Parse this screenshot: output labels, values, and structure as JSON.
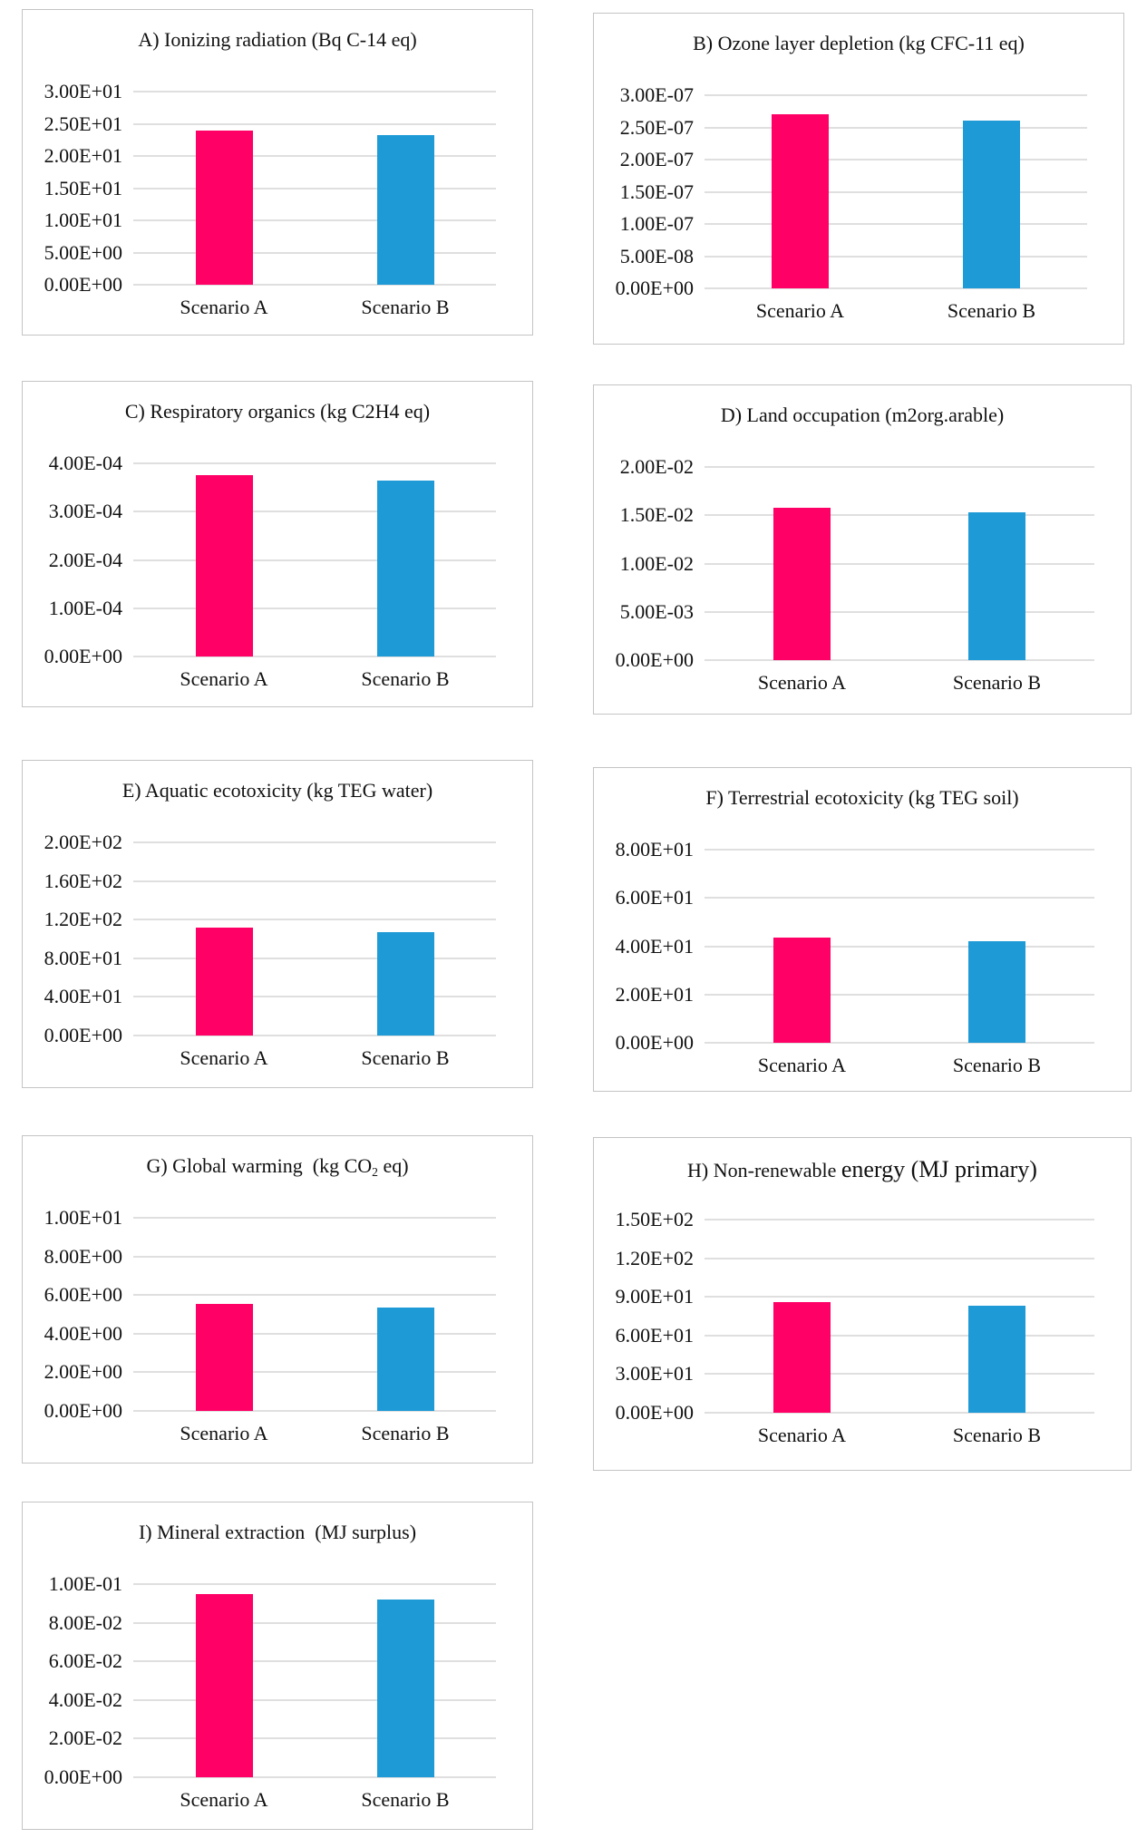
{
  "figure": {
    "description": "Nine-panel comparison of life cycle impact categories for two scenarios",
    "categories": [
      "Scenario A",
      "Scenario B"
    ],
    "colors": {
      "scenario_a_bar": "#FF0066",
      "scenario_b_bar": "#1E9AD6",
      "gridline": "#DFDFDF",
      "panel_border": "#C4C4C4",
      "text": "#111111"
    }
  },
  "chart_data": [
    {
      "id": "A",
      "type": "bar",
      "title": "A) Ionizing radiation (Bq C-14 eq)",
      "title_segments": [
        {
          "text": "A) Ionizing radiation (Bq C-14 eq)",
          "style": "normal"
        }
      ],
      "categories": [
        "Scenario A",
        "Scenario B"
      ],
      "values": [
        24.0,
        23.2
      ],
      "ylim": [
        0,
        30
      ],
      "yticks": [
        "3.00E+01",
        "2.50E+01",
        "2.00E+01",
        "1.50E+01",
        "1.00E+01",
        "5.00E+00",
        "0.00E+00"
      ],
      "grid": true,
      "legend": "none"
    },
    {
      "id": "B",
      "type": "bar",
      "title": "B) Ozone layer depletion (kg CFC-11 eq)",
      "title_segments": [
        {
          "text": "B) Ozone layer depletion (kg CFC-11 eq)",
          "style": "normal"
        }
      ],
      "categories": [
        "Scenario A",
        "Scenario B"
      ],
      "values": [
        2.7e-07,
        2.6e-07
      ],
      "ylim": [
        0,
        3e-07
      ],
      "yticks": [
        "3.00E-07",
        "2.50E-07",
        "2.00E-07",
        "1.50E-07",
        "1.00E-07",
        "5.00E-08",
        "0.00E+00"
      ],
      "grid": true,
      "legend": "none"
    },
    {
      "id": "C",
      "type": "bar",
      "title": "C) Respiratory organics (kg C2H4 eq)",
      "title_segments": [
        {
          "text": "C) Respiratory organics (kg C2H4 eq)",
          "style": "normal"
        }
      ],
      "categories": [
        "Scenario A",
        "Scenario B"
      ],
      "values": [
        0.000376,
        0.000364
      ],
      "ylim": [
        0,
        0.0004
      ],
      "yticks": [
        "4.00E-04",
        "3.00E-04",
        "2.00E-04",
        "1.00E-04",
        "0.00E+00"
      ],
      "grid": true,
      "legend": "none"
    },
    {
      "id": "D",
      "type": "bar",
      "title": "D) Land occupation (m2org.arable)",
      "title_segments": [
        {
          "text": "D) Land occupation (m2org.arable)",
          "style": "normal"
        }
      ],
      "categories": [
        "Scenario A",
        "Scenario B"
      ],
      "values": [
        0.0158,
        0.0153
      ],
      "ylim": [
        0,
        0.02
      ],
      "yticks": [
        "2.00E-02",
        "1.50E-02",
        "1.00E-02",
        "5.00E-03",
        "0.00E+00"
      ],
      "grid": true,
      "legend": "none"
    },
    {
      "id": "E",
      "type": "bar",
      "title": "E) Aquatic ecotoxicity (kg TEG water)",
      "title_segments": [
        {
          "text": "E) Aquatic ecotoxicity (kg TEG water)",
          "style": "normal"
        }
      ],
      "categories": [
        "Scenario A",
        "Scenario B"
      ],
      "values": [
        112,
        107
      ],
      "ylim": [
        0,
        200
      ],
      "yticks": [
        "2.00E+02",
        "1.60E+02",
        "1.20E+02",
        "8.00E+01",
        "4.00E+01",
        "0.00E+00"
      ],
      "grid": true,
      "legend": "none"
    },
    {
      "id": "F",
      "type": "bar",
      "title": "F) Terrestrial ecotoxicity (kg TEG soil)",
      "title_segments": [
        {
          "text": "F) Terrestrial ecotoxicity (kg TEG soil)",
          "style": "normal"
        }
      ],
      "categories": [
        "Scenario A",
        "Scenario B"
      ],
      "values": [
        43.5,
        42.0
      ],
      "ylim": [
        0,
        80
      ],
      "yticks": [
        "8.00E+01",
        "6.00E+01",
        "4.00E+01",
        "2.00E+01",
        "0.00E+00"
      ],
      "grid": true,
      "legend": "none"
    },
    {
      "id": "G",
      "type": "bar",
      "title": "G) Global warming  (kg CO2 eq)",
      "title_segments": [
        {
          "text": "G) Global warming  (kg CO",
          "style": "normal"
        },
        {
          "text": "2",
          "style": "sub"
        },
        {
          "text": " eq)",
          "style": "normal"
        }
      ],
      "categories": [
        "Scenario A",
        "Scenario B"
      ],
      "values": [
        5.55,
        5.35
      ],
      "ylim": [
        0,
        10
      ],
      "yticks": [
        "1.00E+01",
        "8.00E+00",
        "6.00E+00",
        "4.00E+00",
        "2.00E+00",
        "0.00E+00"
      ],
      "grid": true,
      "legend": "none"
    },
    {
      "id": "H",
      "type": "bar",
      "title": "H) Non-renewable energy (MJ primary)",
      "title_segments": [
        {
          "text": "H) Non-renewable ",
          "style": "normal"
        },
        {
          "text": "energy (MJ primary)",
          "style": "large"
        }
      ],
      "categories": [
        "Scenario A",
        "Scenario B"
      ],
      "values": [
        86,
        83
      ],
      "ylim": [
        0,
        150
      ],
      "yticks": [
        "1.50E+02",
        "1.20E+02",
        "9.00E+01",
        "6.00E+01",
        "3.00E+01",
        "0.00E+00"
      ],
      "grid": true,
      "legend": "none"
    },
    {
      "id": "I",
      "type": "bar",
      "title": "I) Mineral extraction  (MJ surplus)",
      "title_segments": [
        {
          "text": "I) Mineral extraction  (MJ surplus)",
          "style": "normal"
        }
      ],
      "categories": [
        "Scenario A",
        "Scenario B"
      ],
      "values": [
        0.095,
        0.092
      ],
      "ylim": [
        0,
        0.1
      ],
      "yticks": [
        "1.00E-01",
        "8.00E-02",
        "6.00E-02",
        "4.00E-02",
        "2.00E-02",
        "0.00E+00"
      ],
      "grid": true,
      "legend": "none"
    }
  ]
}
